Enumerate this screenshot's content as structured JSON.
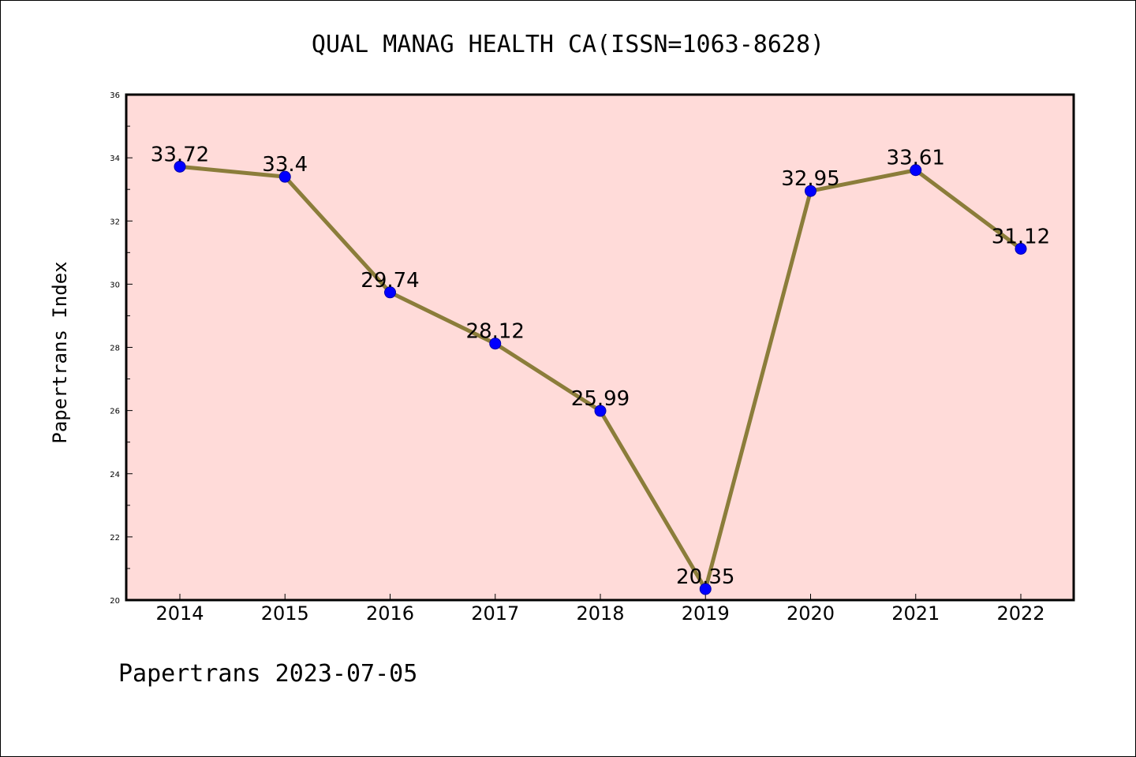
{
  "chart_data": {
    "type": "line",
    "title": "QUAL MANAG HEALTH CA(ISSN=1063-8628)",
    "xlabel": "",
    "ylabel": "Papertrans Index",
    "categories": [
      "2014",
      "2015",
      "2016",
      "2017",
      "2018",
      "2019",
      "2020",
      "2021",
      "2022"
    ],
    "values": [
      33.72,
      33.4,
      29.74,
      28.12,
      25.99,
      20.35,
      32.95,
      33.61,
      31.12
    ],
    "data_labels": [
      "33.72",
      "33.4",
      "29.74",
      "28.12",
      "25.99",
      "20.35",
      "32.95",
      "33.61",
      "31.12"
    ],
    "ylim": [
      20,
      36
    ],
    "yticks": [
      20,
      22,
      24,
      26,
      28,
      30,
      32,
      34,
      36
    ],
    "ytick_labels": [
      "20",
      "22",
      "24",
      "26",
      "28",
      "30",
      "32",
      "34",
      "36"
    ],
    "grid": false,
    "colors": {
      "plot_background": "#FFDBD9",
      "line": "#8B7D3A",
      "marker": "#0000FF"
    }
  },
  "footer": "Papertrans 2023-07-05"
}
